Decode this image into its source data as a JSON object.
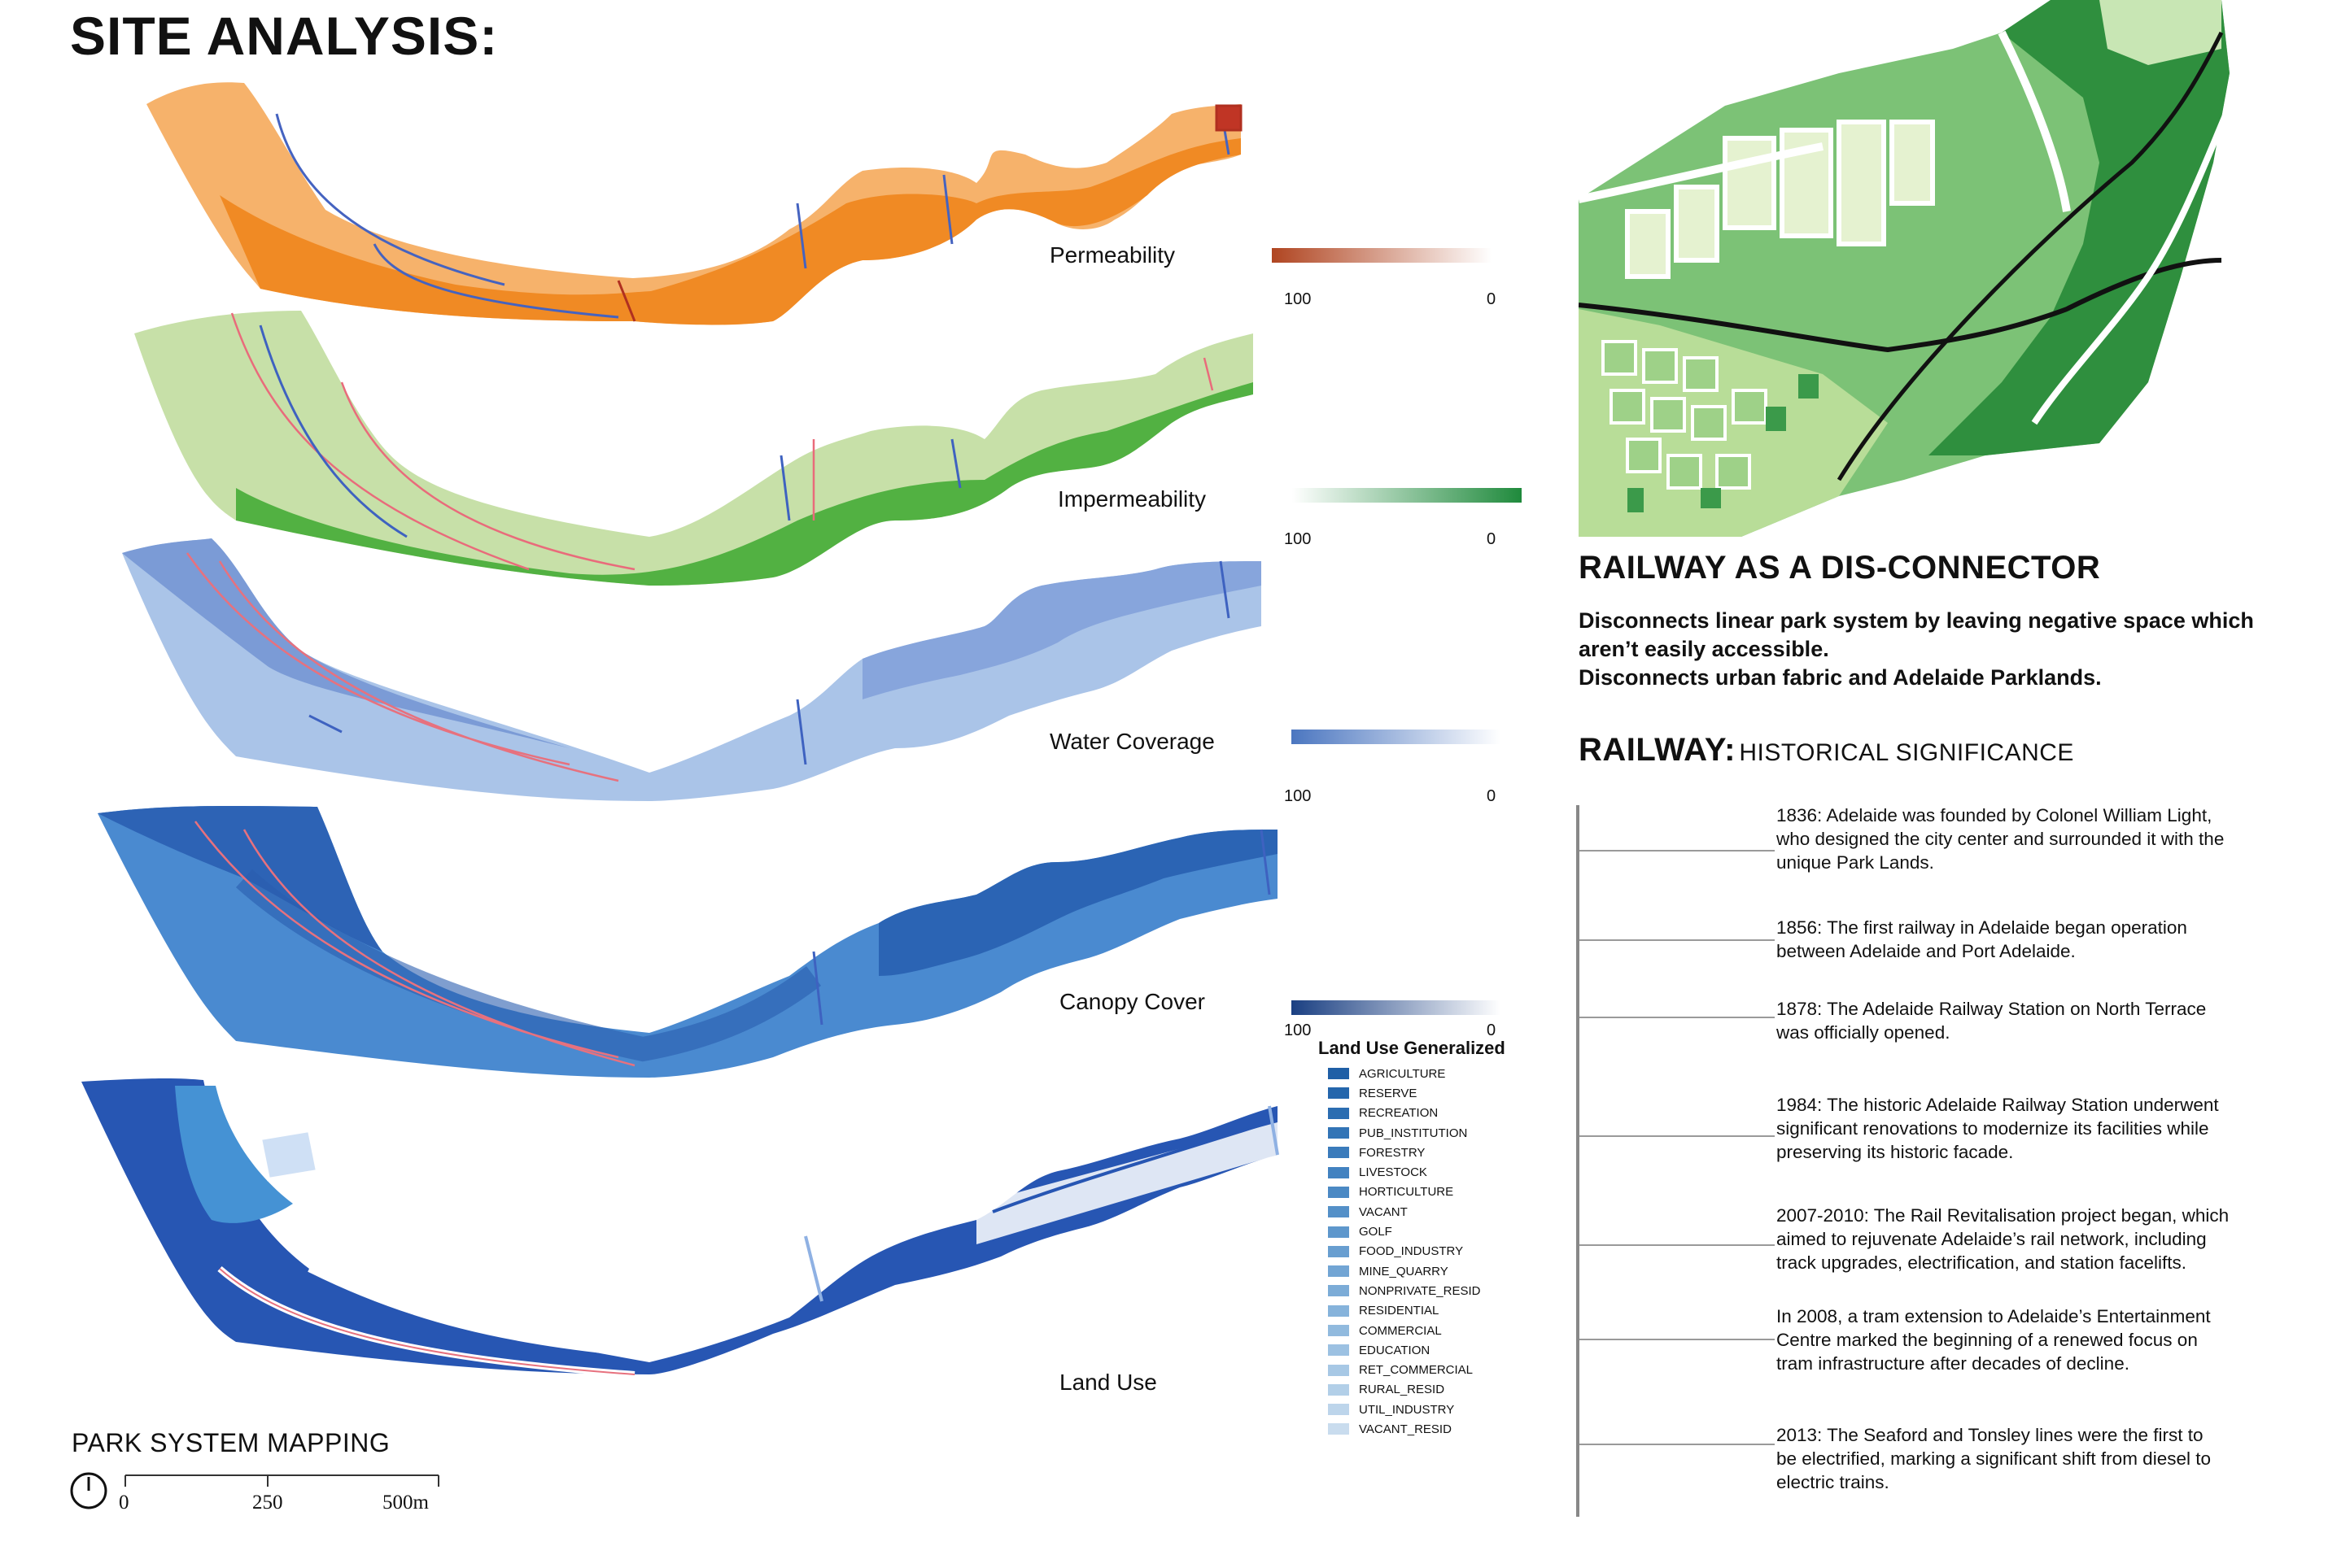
{
  "page_title": "SITE ANALYSIS:",
  "maps": [
    {
      "label": "Permeability",
      "grad_left": "100",
      "grad_right": "0",
      "colors": [
        "#f6b26b",
        "#f2922e",
        "#ef8420"
      ]
    },
    {
      "label": "Impermeability",
      "grad_left": "100",
      "grad_right": "0",
      "colors": [
        "#c7e0a8",
        "#6abf4b",
        "#3ea336"
      ]
    },
    {
      "label": "Water Coverage",
      "grad_left": "100",
      "grad_right": "0",
      "colors": [
        "#aac4e8",
        "#8aa9dc",
        "#7697d3"
      ]
    },
    {
      "label": "Canopy Cover",
      "grad_left": "100",
      "grad_right": "0",
      "colors": [
        "#4a8ad0",
        "#3a79c4",
        "#2b64b4"
      ]
    },
    {
      "label": "Land Use",
      "colors": [
        "#2756b3",
        "#1f4fae",
        "#4592d4"
      ]
    }
  ],
  "gradients": {
    "permeability": [
      "#b04521",
      "#ffffff"
    ],
    "impermeability": [
      "#ffffff",
      "#1f8a3c"
    ],
    "water": [
      "#4b76c0",
      "#ffffff"
    ],
    "canopy": [
      "#1a3f82",
      "#ffffff"
    ]
  },
  "legend": {
    "title": "Land Use Generalized",
    "items": [
      {
        "label": "AGRICULTURE",
        "color": "#1f5fa6"
      },
      {
        "label": "RESERVE",
        "color": "#2466ac"
      },
      {
        "label": "RECREATION",
        "color": "#2b6db1"
      },
      {
        "label": "PUB_INSTITUTION",
        "color": "#3274b6"
      },
      {
        "label": "FORESTRY",
        "color": "#3a7bbb"
      },
      {
        "label": "LIVESTOCK",
        "color": "#4282c0"
      },
      {
        "label": "HORTICULTURE",
        "color": "#4b89c4"
      },
      {
        "label": "VACANT",
        "color": "#5490c8"
      },
      {
        "label": "GOLF",
        "color": "#5e97cc"
      },
      {
        "label": "FOOD_INDUSTRY",
        "color": "#689ed0"
      },
      {
        "label": "MINE_QUARRY",
        "color": "#72a5d4"
      },
      {
        "label": "NONPRIVATE_RESID",
        "color": "#7cacd7"
      },
      {
        "label": "RESIDENTIAL",
        "color": "#86b3db"
      },
      {
        "label": "COMMERCIAL",
        "color": "#91bade"
      },
      {
        "label": "EDUCATION",
        "color": "#9cc1e2"
      },
      {
        "label": "RET_COMMERCIAL",
        "color": "#a7c8e5"
      },
      {
        "label": "RURAL_RESID",
        "color": "#b2cfe8"
      },
      {
        "label": "UTIL_INDUSTRY",
        "color": "#bdd5eb"
      },
      {
        "label": "VACANT_RESID",
        "color": "#c9dcee"
      }
    ]
  },
  "park_mapping": {
    "title": "PARK SYSTEM MAPPING",
    "scale": [
      "0",
      "250",
      "500m"
    ]
  },
  "railway": {
    "heading": "RAILWAY AS A DIS-CONNECTOR",
    "body_lines": [
      "Disconnects linear park system by leaving negative space which",
      "aren’t easily accessible.",
      "Disconnects urban fabric and Adelaide Parklands."
    ]
  },
  "history": {
    "heading_main": "RAILWAY:",
    "heading_sub": "HISTORICAL SIGNIFICANCE",
    "events": [
      {
        "lines": [
          "1836: Adelaide was founded by Colonel William Light,",
          "who designed the city center and surrounded it with the",
          "unique Park Lands."
        ]
      },
      {
        "lines": [
          "1856: The first railway in Adelaide began operation",
          "between Adelaide and Port Adelaide."
        ]
      },
      {
        "lines": [
          "1878: The Adelaide Railway Station on North Terrace",
          "was officially opened."
        ]
      },
      {
        "lines": [
          "1984: The historic Adelaide Railway Station underwent",
          "significant renovations to modernize its facilities while",
          "preserving its historic facade."
        ]
      },
      {
        "lines": [
          "2007-2010: The Rail Revitalisation project began, which",
          "aimed to rejuvenate Adelaide’s rail network, including",
          "track upgrades, electrification, and station facelifts."
        ]
      },
      {
        "lines": [
          "In 2008, a tram extension to Adelaide’s Entertainment",
          "Centre marked the beginning of a renewed focus on",
          "tram infrastructure after decades of decline."
        ]
      },
      {
        "lines": [
          "2013: The Seaford and Tonsley lines were the first to",
          "be electrified, marking a significant shift from diesel to",
          "electric trains."
        ]
      }
    ]
  }
}
